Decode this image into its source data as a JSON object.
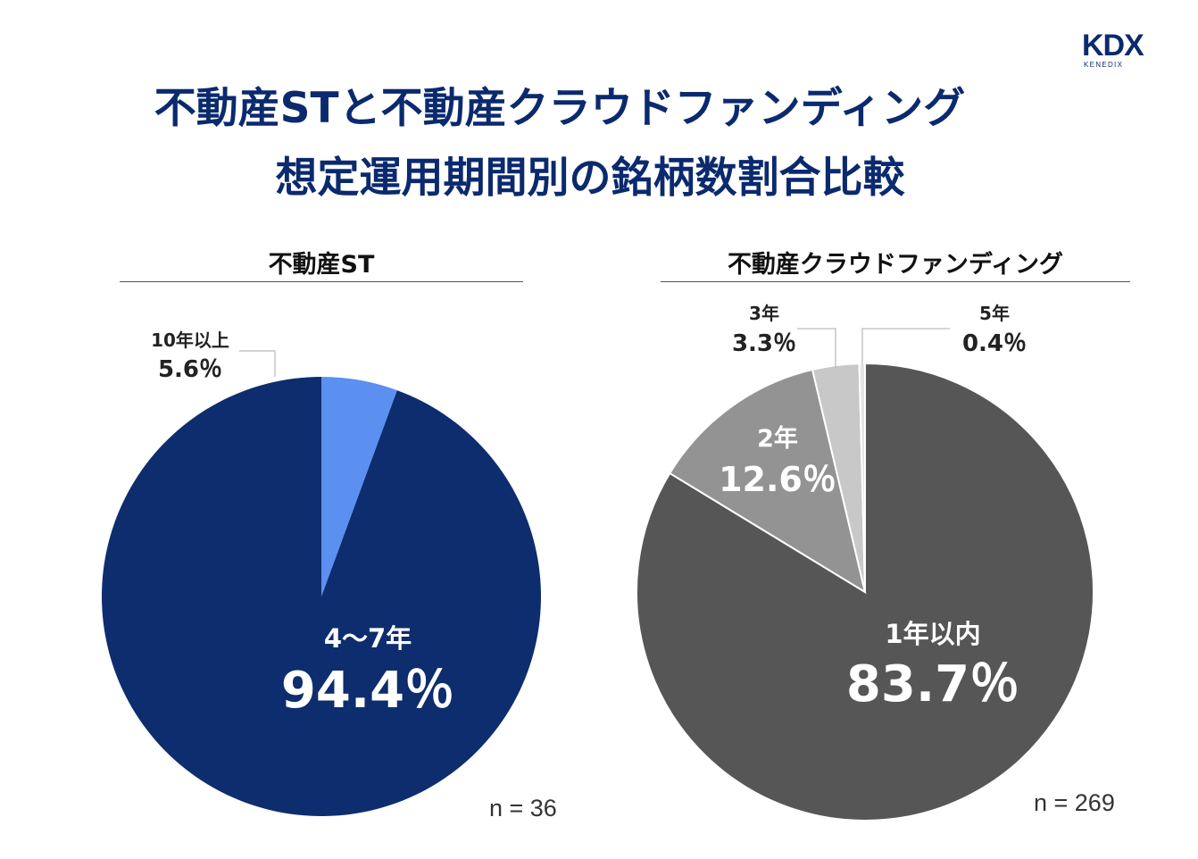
{
  "title_line1": "不動産STと不動産クラウドファンディング",
  "title_line2": "想定運用期間別の銘柄数割合比較",
  "logo": {
    "main": "KDX",
    "sub": "KENEDIX"
  },
  "colors": {
    "title": "#0b2a6e",
    "st_main": "#0e2d6f",
    "st_minor": "#5b8ff0",
    "cf_1": "#565656",
    "cf_2": "#939393",
    "cf_3": "#c8c8c8",
    "cf_5": "#e4e4e4"
  },
  "chart_data": [
    {
      "type": "pie",
      "title": "不動産ST",
      "n_label": "n = 36",
      "slices": [
        {
          "label": "4〜7年",
          "value": 94.4,
          "value_text": "94.4％",
          "color": "#0e2d6f"
        },
        {
          "label": "10年以上",
          "value": 5.6,
          "value_text": "5.6％",
          "color": "#5b8ff0"
        }
      ]
    },
    {
      "type": "pie",
      "title": "不動産クラウドファンディング",
      "n_label": "n = 269",
      "slices": [
        {
          "label": "1年以内",
          "value": 83.7,
          "value_text": "83.7％",
          "color": "#565656"
        },
        {
          "label": "2年",
          "value": 12.6,
          "value_text": "12.6％",
          "color": "#939393"
        },
        {
          "label": "3年",
          "value": 3.3,
          "value_text": "3.3％",
          "color": "#c8c8c8"
        },
        {
          "label": "5年",
          "value": 0.4,
          "value_text": "0.4％",
          "color": "#e4e4e4"
        }
      ]
    }
  ]
}
